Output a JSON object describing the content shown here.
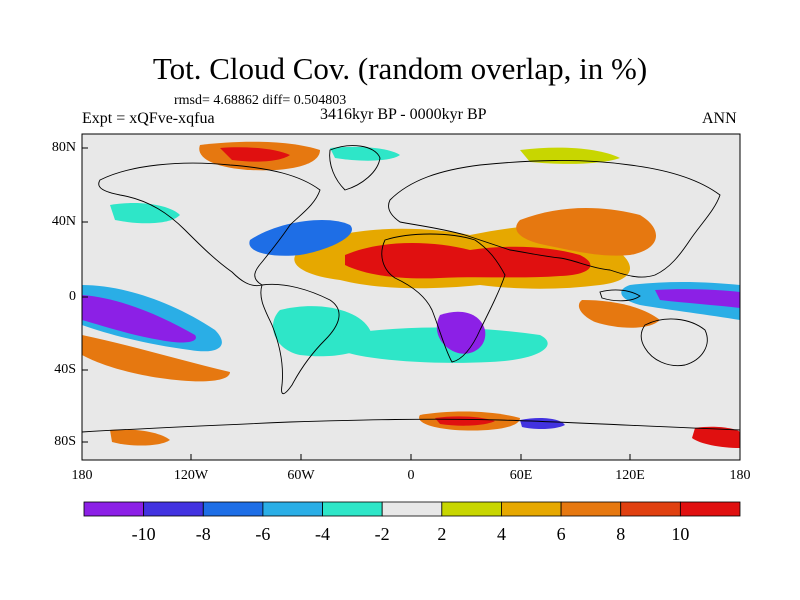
{
  "header": {
    "title": "Tot. Cloud Cov. (random overlap, in %)",
    "stats": "rmsd= 4.68862 diff= 0.504803",
    "experiment": "Expt = xQFve-xqfua",
    "period": "3416kyr BP - 0000kyr BP",
    "season": "ANN"
  },
  "axes": {
    "lat_ticks": [
      "80N",
      "40N",
      "0",
      "40S",
      "80S"
    ],
    "lon_ticks": [
      "180",
      "120W",
      "60W",
      "0",
      "60E",
      "120E",
      "180"
    ]
  },
  "colorbar": {
    "labels": [
      "-10",
      "-8",
      "-6",
      "-4",
      "-2",
      "2",
      "4",
      "6",
      "8",
      "10"
    ],
    "colors": [
      "#8c20e6",
      "#4232e0",
      "#1e6ee6",
      "#2aaee6",
      "#2ee6c8",
      "#e8e8e8",
      "#c8d600",
      "#e6a800",
      "#e67810",
      "#e04010",
      "#e01010"
    ]
  }
}
